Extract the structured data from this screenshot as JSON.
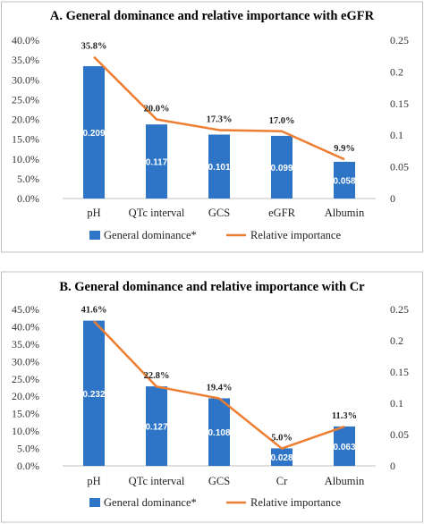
{
  "colors": {
    "bar": "#2e75c8",
    "line": "#ed7d31",
    "axis": "#bfbfbf",
    "border": "#bfbfbf"
  },
  "chart_data": [
    {
      "type": "bar",
      "title": "A. General dominance and relative importance with eGFR",
      "categories": [
        "pH",
        "QTc interval",
        "GCS",
        "eGFR",
        "Albumin"
      ],
      "series": [
        {
          "name": "General dominance*",
          "type": "bar",
          "axis": "right",
          "values": [
            0.209,
            0.117,
            0.101,
            0.099,
            0.058
          ],
          "labels": [
            "0.209",
            "0.117",
            "0.101",
            "0.099",
            "0.058"
          ]
        },
        {
          "name": "Relative importance",
          "type": "line",
          "axis": "left",
          "values": [
            35.8,
            20.0,
            17.3,
            17.0,
            9.9
          ],
          "labels": [
            "35.8%",
            "20.0%",
            "17.3%",
            "17.0%",
            "9.9%"
          ]
        }
      ],
      "left_axis": {
        "ylim": [
          0,
          40
        ],
        "ticks": [
          "0.0%",
          "5.0%",
          "10.0%",
          "15.0%",
          "20.0%",
          "25.0%",
          "30.0%",
          "35.0%",
          "40.0%"
        ]
      },
      "right_axis": {
        "ylim": [
          0,
          0.25
        ],
        "ticks": [
          "0",
          "0.05",
          "0.1",
          "0.15",
          "0.2",
          "0.25"
        ]
      },
      "legend": "bottom"
    },
    {
      "type": "bar",
      "title": "B. General dominance and relative importance with Cr",
      "categories": [
        "pH",
        "QTc interval",
        "GCS",
        "Cr",
        "Albumin"
      ],
      "series": [
        {
          "name": "General dominance*",
          "type": "bar",
          "axis": "right",
          "values": [
            0.232,
            0.127,
            0.108,
            0.028,
            0.063
          ],
          "labels": [
            "0.232",
            "0.127",
            "0.108",
            "0.028",
            "0.063"
          ]
        },
        {
          "name": "Relative importance",
          "type": "line",
          "axis": "left",
          "values": [
            41.6,
            22.8,
            19.4,
            5.0,
            11.3
          ],
          "labels": [
            "41.6%",
            "22.8%",
            "19.4%",
            "5.0%",
            "11.3%"
          ]
        }
      ],
      "left_axis": {
        "ylim": [
          0,
          45
        ],
        "ticks": [
          "0.0%",
          "5.0%",
          "10.0%",
          "15.0%",
          "20.0%",
          "25.0%",
          "30.0%",
          "35.0%",
          "40.0%",
          "45.0%"
        ]
      },
      "right_axis": {
        "ylim": [
          0,
          0.25
        ],
        "ticks": [
          "0",
          "0.05",
          "0.1",
          "0.15",
          "0.2",
          "0.25"
        ]
      },
      "legend": "bottom"
    }
  ]
}
